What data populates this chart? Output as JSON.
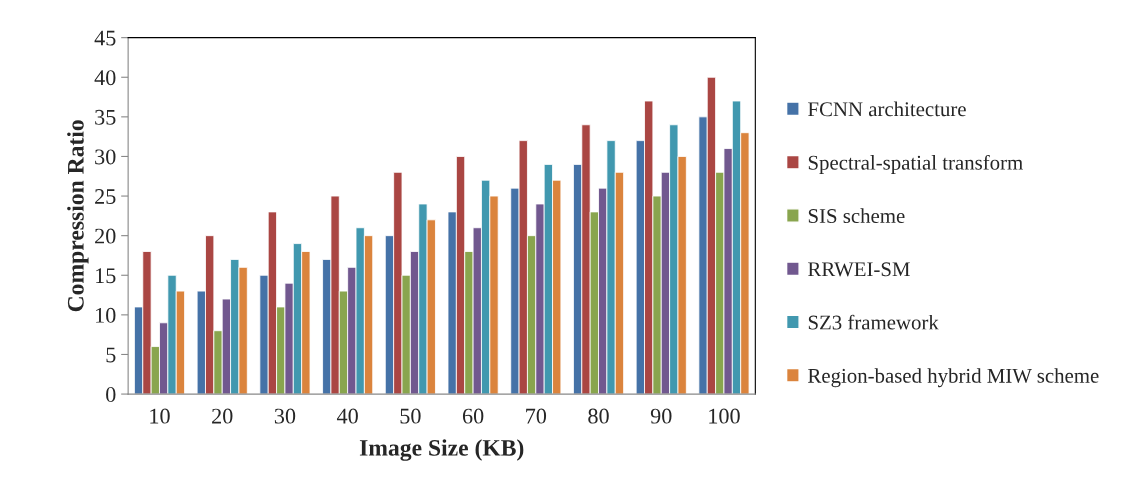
{
  "chart_data": {
    "type": "bar",
    "xlabel": "Image Size (KB)",
    "ylabel": "Compression Ratio",
    "categories": [
      "10",
      "20",
      "30",
      "40",
      "50",
      "60",
      "70",
      "80",
      "90",
      "100"
    ],
    "series": [
      {
        "name": "FCNN architecture",
        "color": "#4572a7",
        "values": [
          11,
          13,
          15,
          17,
          20,
          23,
          26,
          29,
          32,
          35
        ]
      },
      {
        "name": "Spectral-spatial transform",
        "color": "#aa4643",
        "values": [
          18,
          20,
          23,
          25,
          28,
          30,
          32,
          34,
          37,
          40
        ]
      },
      {
        "name": "SIS scheme",
        "color": "#89a54e",
        "values": [
          6,
          8,
          11,
          13,
          15,
          18,
          20,
          23,
          25,
          28
        ]
      },
      {
        "name": "RRWEI-SM",
        "color": "#71588f",
        "values": [
          9,
          12,
          14,
          16,
          18,
          21,
          24,
          26,
          28,
          31
        ]
      },
      {
        "name": "SZ3 framework",
        "color": "#4198af",
        "values": [
          15,
          17,
          19,
          21,
          24,
          27,
          29,
          32,
          34,
          37
        ]
      },
      {
        "name": "Region-based hybrid MIW scheme",
        "color": "#db843d",
        "values": [
          13,
          16,
          18,
          20,
          22,
          25,
          27,
          28,
          30,
          33
        ]
      }
    ],
    "ylim": [
      0,
      45
    ],
    "yticks": [
      0,
      5,
      10,
      15,
      20,
      25,
      30,
      35,
      40,
      45
    ],
    "grid": false,
    "legend": "right"
  }
}
